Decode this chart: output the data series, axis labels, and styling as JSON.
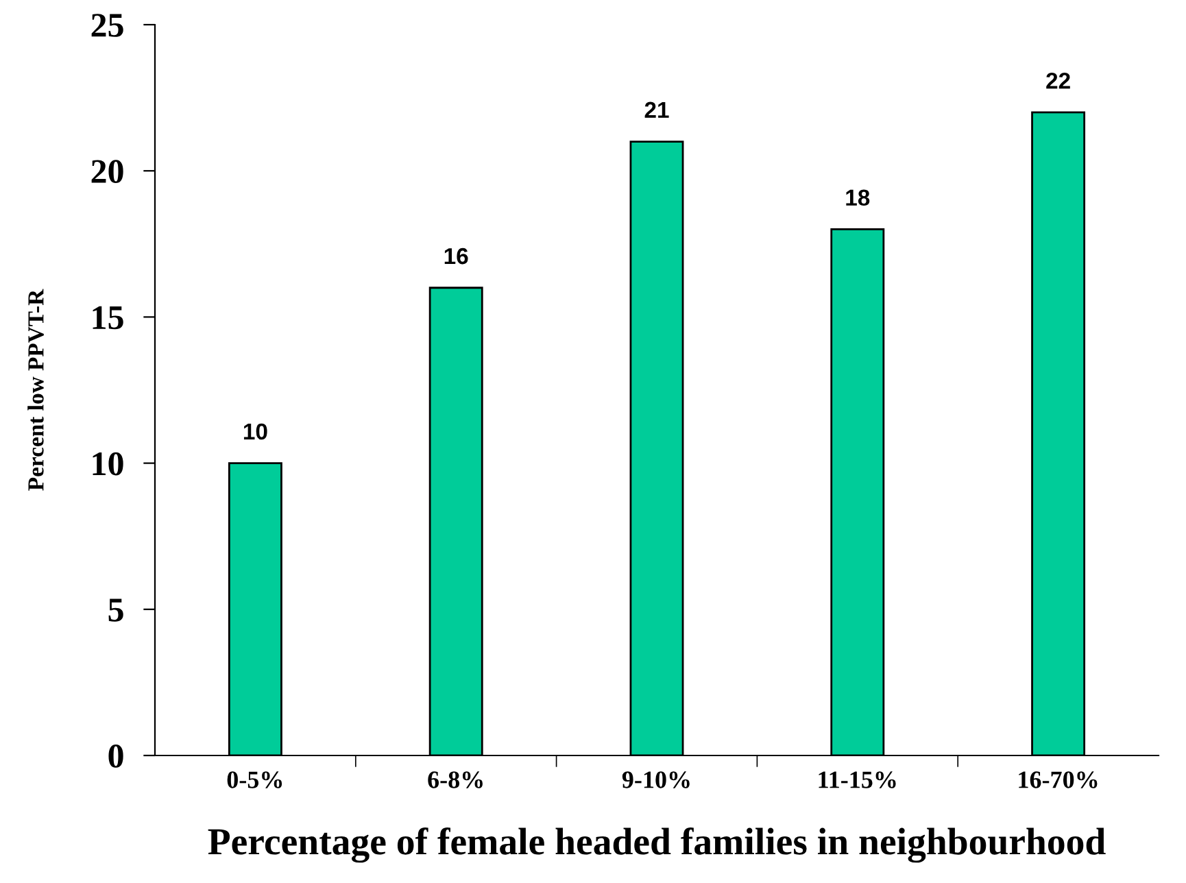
{
  "chart_data": {
    "type": "bar",
    "xlabel": "Percentage of female headed families in neighbourhood",
    "ylabel": "Percent low PPVT-R",
    "categories": [
      "0-5%",
      "6-8%",
      "9-10%",
      "11-15%",
      "16-70%"
    ],
    "values": [
      10,
      16,
      21,
      18,
      22
    ],
    "color": "#00cc99",
    "ylim": [
      0,
      25
    ],
    "yticks": [
      0,
      5,
      10,
      15,
      20,
      25
    ],
    "data_labels": true,
    "grid": false,
    "legend": false
  }
}
